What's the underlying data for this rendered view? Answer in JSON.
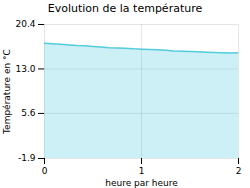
{
  "chart_data": {
    "type": "area",
    "title": "Evolution de la température",
    "xlabel": "heure par heure",
    "ylabel": "Température en °C",
    "x": [
      0.0,
      0.083,
      0.167,
      0.25,
      0.333,
      0.417,
      0.5,
      0.583,
      0.667,
      0.75,
      0.833,
      0.917,
      1.0,
      1.083,
      1.167,
      1.25,
      1.333,
      1.417,
      1.5,
      1.583,
      1.667,
      1.75,
      1.833,
      1.917,
      2.0
    ],
    "values": [
      17.3,
      17.2,
      17.1,
      17.0,
      16.9,
      16.85,
      16.75,
      16.65,
      16.55,
      16.5,
      16.45,
      16.35,
      16.3,
      16.25,
      16.2,
      16.1,
      16.0,
      15.95,
      15.9,
      15.85,
      15.8,
      15.75,
      15.7,
      15.65,
      15.7
    ],
    "color": "#55ccdd",
    "xlim": [
      0,
      2
    ],
    "xticks": [
      0,
      1,
      2
    ],
    "ylim": [
      -1.9,
      20.4
    ],
    "yticks": [
      -1.9,
      5.6,
      {
        "value": 13.0,
        "label": "13.0"
      },
      20.4
    ],
    "grid": true
  }
}
